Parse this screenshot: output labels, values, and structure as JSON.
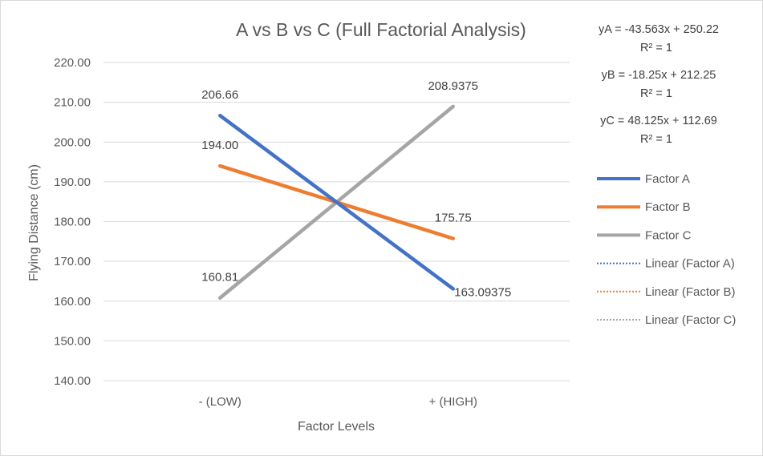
{
  "chart_data": {
    "type": "line",
    "title": "A vs B vs C (Full Factorial Analysis)",
    "xlabel": "Factor Levels",
    "ylabel": "Flying Distance (cm)",
    "categories": [
      "- (LOW)",
      "+ (HIGH)"
    ],
    "ylim": [
      140,
      220
    ],
    "y_ticks": [
      "140.00",
      "150.00",
      "160.00",
      "170.00",
      "180.00",
      "190.00",
      "200.00",
      "210.00",
      "220.00"
    ],
    "grid": true,
    "legend_position": "right",
    "series": [
      {
        "name": "Factor A",
        "color": "#4472C4",
        "values": [
          206.66,
          163.09375
        ],
        "labels": [
          "206.66",
          "163.09375"
        ]
      },
      {
        "name": "Factor B",
        "color": "#ED7D31",
        "values": [
          194.0,
          175.75
        ],
        "labels": [
          "194.00",
          "175.75"
        ]
      },
      {
        "name": "Factor C",
        "color": "#A5A5A5",
        "values": [
          160.81,
          208.9375
        ],
        "labels": [
          "160.81",
          "208.9375"
        ]
      }
    ],
    "trendlines": [
      {
        "name": "Linear (Factor A)",
        "color": "#4472C4",
        "equation": "yA = -43.563x + 250.22",
        "r2": "R² = 1"
      },
      {
        "name": "Linear (Factor B)",
        "color": "#ED7D31",
        "equation": "yB = -18.25x + 212.25",
        "r2": "R² = 1"
      },
      {
        "name": "Linear (Factor C)",
        "color": "#A5A5A5",
        "equation": "yC = 48.125x + 112.69",
        "r2": "R² = 1"
      }
    ]
  }
}
